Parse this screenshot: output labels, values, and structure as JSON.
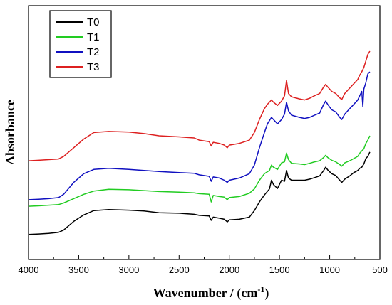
{
  "chart_data": {
    "type": "line",
    "title": "",
    "xlabel": "Wavenumber / (cm",
    "xlabel_sup": "-1",
    "xlabel_suffix": ")",
    "ylabel": "Absorbance",
    "xlim": [
      4000,
      500
    ],
    "x_reversed": true,
    "xticks": [
      4000,
      3500,
      3000,
      2500,
      2000,
      1500,
      1000,
      500
    ],
    "yticks_shown": false,
    "grid": false,
    "legend_position": "top-left",
    "series": [
      {
        "name": "T0",
        "color": "#000000",
        "points": [
          [
            4000,
            0.05
          ],
          [
            3900,
            0.052
          ],
          [
            3800,
            0.055
          ],
          [
            3700,
            0.06
          ],
          [
            3650,
            0.07
          ],
          [
            3550,
            0.11
          ],
          [
            3450,
            0.14
          ],
          [
            3350,
            0.16
          ],
          [
            3200,
            0.165
          ],
          [
            3000,
            0.162
          ],
          [
            2850,
            0.158
          ],
          [
            2700,
            0.15
          ],
          [
            2500,
            0.148
          ],
          [
            2350,
            0.143
          ],
          [
            2300,
            0.138
          ],
          [
            2200,
            0.135
          ],
          [
            2180,
            0.115
          ],
          [
            2160,
            0.13
          ],
          [
            2100,
            0.125
          ],
          [
            2050,
            0.12
          ],
          [
            2020,
            0.108
          ],
          [
            2000,
            0.117
          ],
          [
            1900,
            0.12
          ],
          [
            1800,
            0.13
          ],
          [
            1750,
            0.16
          ],
          [
            1700,
            0.2
          ],
          [
            1650,
            0.232
          ],
          [
            1600,
            0.26
          ],
          [
            1580,
            0.3
          ],
          [
            1560,
            0.28
          ],
          [
            1520,
            0.262
          ],
          [
            1480,
            0.3
          ],
          [
            1450,
            0.295
          ],
          [
            1430,
            0.345
          ],
          [
            1410,
            0.31
          ],
          [
            1380,
            0.3
          ],
          [
            1300,
            0.3
          ],
          [
            1250,
            0.3
          ],
          [
            1200,
            0.305
          ],
          [
            1150,
            0.312
          ],
          [
            1100,
            0.32
          ],
          [
            1060,
            0.345
          ],
          [
            1040,
            0.36
          ],
          [
            1020,
            0.348
          ],
          [
            980,
            0.33
          ],
          [
            940,
            0.322
          ],
          [
            900,
            0.3
          ],
          [
            880,
            0.29
          ],
          [
            850,
            0.305
          ],
          [
            800,
            0.32
          ],
          [
            760,
            0.335
          ],
          [
            720,
            0.345
          ],
          [
            700,
            0.355
          ],
          [
            680,
            0.36
          ],
          [
            660,
            0.375
          ],
          [
            640,
            0.4
          ],
          [
            620,
            0.41
          ],
          [
            600,
            0.43
          ]
        ]
      },
      {
        "name": "T1",
        "color": "#22cc22",
        "points": [
          [
            4000,
            0.18
          ],
          [
            3900,
            0.182
          ],
          [
            3800,
            0.185
          ],
          [
            3700,
            0.188
          ],
          [
            3650,
            0.195
          ],
          [
            3550,
            0.215
          ],
          [
            3450,
            0.235
          ],
          [
            3350,
            0.25
          ],
          [
            3200,
            0.258
          ],
          [
            3000,
            0.256
          ],
          [
            2850,
            0.252
          ],
          [
            2700,
            0.248
          ],
          [
            2500,
            0.245
          ],
          [
            2350,
            0.242
          ],
          [
            2300,
            0.238
          ],
          [
            2200,
            0.235
          ],
          [
            2180,
            0.2
          ],
          [
            2160,
            0.23
          ],
          [
            2100,
            0.225
          ],
          [
            2050,
            0.222
          ],
          [
            2020,
            0.21
          ],
          [
            2000,
            0.22
          ],
          [
            1900,
            0.225
          ],
          [
            1800,
            0.24
          ],
          [
            1750,
            0.26
          ],
          [
            1700,
            0.3
          ],
          [
            1650,
            0.33
          ],
          [
            1600,
            0.345
          ],
          [
            1580,
            0.37
          ],
          [
            1560,
            0.36
          ],
          [
            1520,
            0.35
          ],
          [
            1480,
            0.38
          ],
          [
            1450,
            0.385
          ],
          [
            1430,
            0.425
          ],
          [
            1410,
            0.395
          ],
          [
            1380,
            0.378
          ],
          [
            1300,
            0.375
          ],
          [
            1250,
            0.372
          ],
          [
            1200,
            0.378
          ],
          [
            1150,
            0.385
          ],
          [
            1100,
            0.39
          ],
          [
            1060,
            0.405
          ],
          [
            1040,
            0.415
          ],
          [
            1020,
            0.405
          ],
          [
            980,
            0.392
          ],
          [
            940,
            0.385
          ],
          [
            900,
            0.372
          ],
          [
            880,
            0.365
          ],
          [
            850,
            0.38
          ],
          [
            800,
            0.39
          ],
          [
            760,
            0.4
          ],
          [
            720,
            0.41
          ],
          [
            700,
            0.425
          ],
          [
            680,
            0.435
          ],
          [
            660,
            0.445
          ],
          [
            640,
            0.47
          ],
          [
            620,
            0.485
          ],
          [
            600,
            0.505
          ]
        ]
      },
      {
        "name": "T2",
        "color": "#1010c0",
        "points": [
          [
            4000,
            0.21
          ],
          [
            3900,
            0.212
          ],
          [
            3800,
            0.215
          ],
          [
            3700,
            0.22
          ],
          [
            3650,
            0.235
          ],
          [
            3550,
            0.29
          ],
          [
            3450,
            0.33
          ],
          [
            3350,
            0.35
          ],
          [
            3200,
            0.355
          ],
          [
            3000,
            0.35
          ],
          [
            2850,
            0.345
          ],
          [
            2700,
            0.34
          ],
          [
            2500,
            0.335
          ],
          [
            2350,
            0.332
          ],
          [
            2300,
            0.325
          ],
          [
            2200,
            0.318
          ],
          [
            2180,
            0.295
          ],
          [
            2160,
            0.315
          ],
          [
            2100,
            0.31
          ],
          [
            2050,
            0.3
          ],
          [
            2020,
            0.29
          ],
          [
            2000,
            0.3
          ],
          [
            1900,
            0.31
          ],
          [
            1800,
            0.33
          ],
          [
            1750,
            0.37
          ],
          [
            1700,
            0.45
          ],
          [
            1650,
            0.52
          ],
          [
            1620,
            0.56
          ],
          [
            1580,
            0.59
          ],
          [
            1560,
            0.58
          ],
          [
            1520,
            0.56
          ],
          [
            1480,
            0.58
          ],
          [
            1450,
            0.605
          ],
          [
            1430,
            0.66
          ],
          [
            1410,
            0.62
          ],
          [
            1380,
            0.6
          ],
          [
            1300,
            0.59
          ],
          [
            1250,
            0.585
          ],
          [
            1200,
            0.59
          ],
          [
            1150,
            0.6
          ],
          [
            1100,
            0.61
          ],
          [
            1060,
            0.65
          ],
          [
            1040,
            0.665
          ],
          [
            1020,
            0.65
          ],
          [
            980,
            0.625
          ],
          [
            940,
            0.615
          ],
          [
            900,
            0.59
          ],
          [
            880,
            0.58
          ],
          [
            850,
            0.605
          ],
          [
            800,
            0.63
          ],
          [
            760,
            0.65
          ],
          [
            720,
            0.67
          ],
          [
            700,
            0.69
          ],
          [
            680,
            0.71
          ],
          [
            670,
            0.64
          ],
          [
            660,
            0.72
          ],
          [
            640,
            0.75
          ],
          [
            620,
            0.79
          ],
          [
            600,
            0.8
          ]
        ]
      },
      {
        "name": "T3",
        "color": "#dd2020",
        "points": [
          [
            4000,
            0.39
          ],
          [
            3900,
            0.392
          ],
          [
            3800,
            0.395
          ],
          [
            3700,
            0.398
          ],
          [
            3650,
            0.41
          ],
          [
            3550,
            0.45
          ],
          [
            3450,
            0.49
          ],
          [
            3350,
            0.52
          ],
          [
            3200,
            0.525
          ],
          [
            3000,
            0.522
          ],
          [
            2850,
            0.515
          ],
          [
            2700,
            0.505
          ],
          [
            2500,
            0.5
          ],
          [
            2350,
            0.495
          ],
          [
            2300,
            0.485
          ],
          [
            2200,
            0.478
          ],
          [
            2180,
            0.458
          ],
          [
            2160,
            0.475
          ],
          [
            2100,
            0.47
          ],
          [
            2050,
            0.462
          ],
          [
            2020,
            0.45
          ],
          [
            2000,
            0.462
          ],
          [
            1900,
            0.47
          ],
          [
            1800,
            0.485
          ],
          [
            1750,
            0.52
          ],
          [
            1700,
            0.58
          ],
          [
            1650,
            0.63
          ],
          [
            1620,
            0.65
          ],
          [
            1580,
            0.67
          ],
          [
            1560,
            0.66
          ],
          [
            1520,
            0.645
          ],
          [
            1480,
            0.665
          ],
          [
            1450,
            0.69
          ],
          [
            1430,
            0.76
          ],
          [
            1410,
            0.7
          ],
          [
            1380,
            0.685
          ],
          [
            1300,
            0.675
          ],
          [
            1250,
            0.67
          ],
          [
            1200,
            0.678
          ],
          [
            1150,
            0.69
          ],
          [
            1100,
            0.7
          ],
          [
            1060,
            0.73
          ],
          [
            1040,
            0.742
          ],
          [
            1020,
            0.73
          ],
          [
            980,
            0.71
          ],
          [
            940,
            0.7
          ],
          [
            900,
            0.68
          ],
          [
            880,
            0.672
          ],
          [
            850,
            0.7
          ],
          [
            800,
            0.725
          ],
          [
            760,
            0.745
          ],
          [
            720,
            0.765
          ],
          [
            700,
            0.785
          ],
          [
            680,
            0.8
          ],
          [
            660,
            0.82
          ],
          [
            640,
            0.85
          ],
          [
            620,
            0.88
          ],
          [
            600,
            0.895
          ]
        ]
      }
    ]
  }
}
